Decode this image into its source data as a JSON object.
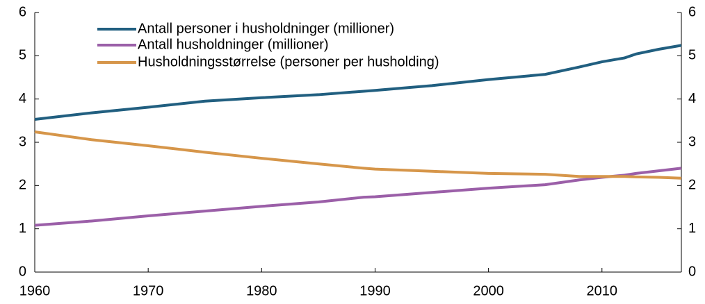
{
  "chart_data": {
    "type": "line",
    "x": [
      1960,
      1965,
      1970,
      1975,
      1980,
      1985,
      1989,
      1990,
      1995,
      2000,
      2005,
      2008,
      2010,
      2012,
      2013,
      2015,
      2017
    ],
    "series": [
      {
        "name": "Antall personer i husholdninger (millioner)",
        "color": "#215f80",
        "values": [
          3.53,
          3.68,
          3.81,
          3.95,
          4.03,
          4.1,
          4.18,
          4.2,
          4.31,
          4.45,
          4.57,
          4.74,
          4.86,
          4.95,
          5.04,
          5.15,
          5.24
        ]
      },
      {
        "name": "Antall husholdninger (millioner)",
        "color": "#9b5fa8",
        "values": [
          1.08,
          1.18,
          1.3,
          1.41,
          1.52,
          1.62,
          1.73,
          1.74,
          1.84,
          1.94,
          2.02,
          2.13,
          2.19,
          2.24,
          2.28,
          2.34,
          2.4
        ]
      },
      {
        "name": "Husholdningsstørrelse (personer per husholding)",
        "color": "#d6964a",
        "values": [
          3.24,
          3.06,
          2.92,
          2.77,
          2.63,
          2.5,
          2.4,
          2.38,
          2.33,
          2.28,
          2.26,
          2.21,
          2.21,
          2.21,
          2.2,
          2.19,
          2.17
        ]
      }
    ],
    "xlim": [
      1960,
      2017
    ],
    "xticks": [
      1960,
      1970,
      1980,
      1990,
      2000,
      2010
    ],
    "ylim": [
      0,
      6
    ],
    "yticks": [
      0,
      1,
      2,
      3,
      4,
      5,
      6
    ],
    "y2lim": [
      0,
      6
    ],
    "y2ticks": [
      0,
      1,
      2,
      3,
      4,
      5,
      6
    ],
    "legend": "upper-left"
  }
}
